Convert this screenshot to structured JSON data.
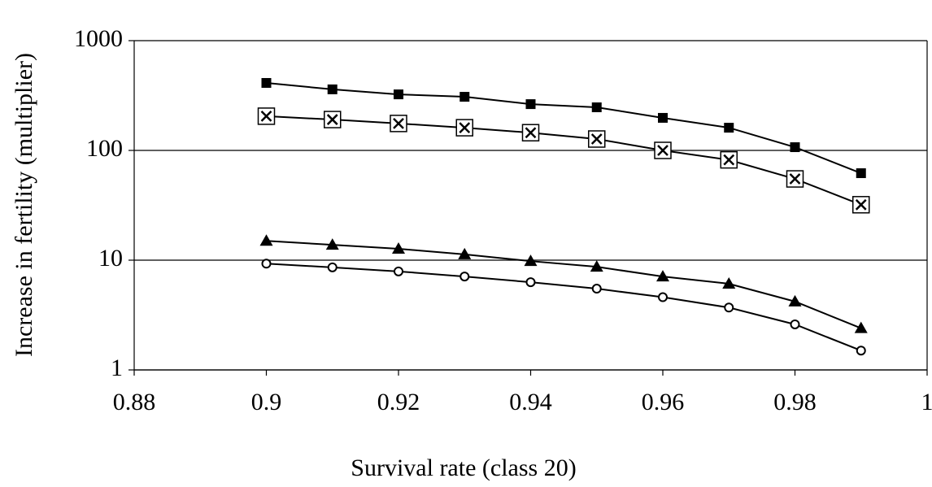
{
  "chart_data": {
    "type": "line",
    "x_label": "Survival rate (class 20)",
    "y_label": "Increase in fertility (multiplier)",
    "x": [
      0.9,
      0.91,
      0.92,
      0.93,
      0.94,
      0.95,
      0.96,
      0.97,
      0.98,
      0.99
    ],
    "series": [
      {
        "color": "#000000",
        "marker": "filled-square",
        "values": [
          412,
          360,
          324,
          308,
          264,
          247,
          198,
          161,
          107,
          62
        ]
      },
      {
        "color": "#000000",
        "marker": "crossed-square",
        "values": [
          205,
          191,
          176,
          161,
          145,
          127,
          100,
          82,
          55,
          32
        ]
      },
      {
        "color": "#000000",
        "marker": "filled-triangle",
        "values": [
          15,
          13.8,
          12.7,
          11.3,
          9.8,
          8.7,
          7.1,
          6.1,
          4.2,
          2.4
        ]
      },
      {
        "color": "#000000",
        "marker": "open-circle",
        "values": [
          9.3,
          8.6,
          7.9,
          7.1,
          6.3,
          5.5,
          4.6,
          3.7,
          2.6,
          1.5
        ]
      }
    ],
    "xlim": [
      0.88,
      1
    ],
    "xticks": [
      0.88,
      0.9,
      0.92,
      0.94,
      0.96,
      0.98,
      1
    ],
    "ylim": [
      1,
      1000
    ],
    "yticks": [
      1,
      10,
      100,
      1000
    ],
    "ylog": true,
    "grid": true
  }
}
